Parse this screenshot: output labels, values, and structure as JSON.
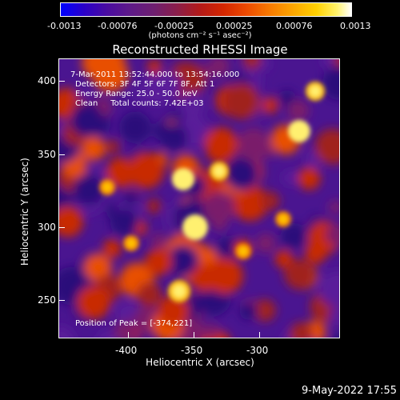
{
  "colorbar": {
    "ticks": [
      "-0.0013",
      "-0.00076",
      "-0.00025",
      "0.00025",
      "0.00076",
      "0.0013"
    ],
    "unit_label": "(photons cm⁻² s⁻¹ asec⁻²)"
  },
  "title": "Reconstructed RHESSI Image",
  "annotations": {
    "time_range": "7-Mar-2011 13:52:44.000 to 13:54:16.000",
    "detectors": "Detectors: 3F 4F 5F 6F 7F 8F, Att 1",
    "energy": "Energy Range: 25.0 - 50.0 keV",
    "clean": "Clean     Total counts: 7.42E+03",
    "peak": "Position of Peak = [-374,221]"
  },
  "axes": {
    "xlabel": "Heliocentric X (arcsec)",
    "ylabel": "Heliocentric Y (arcsec)",
    "xticks": [
      "-400",
      "-350",
      "-300"
    ],
    "yticks": [
      "400",
      "350",
      "300",
      "250"
    ]
  },
  "timestamp": "9-May-2022 17:55",
  "colors": {
    "background": "#000000",
    "low": "#3a0a80",
    "mid": "#c41f0a",
    "high": "#fff04a",
    "axes": "#ffffff"
  }
}
